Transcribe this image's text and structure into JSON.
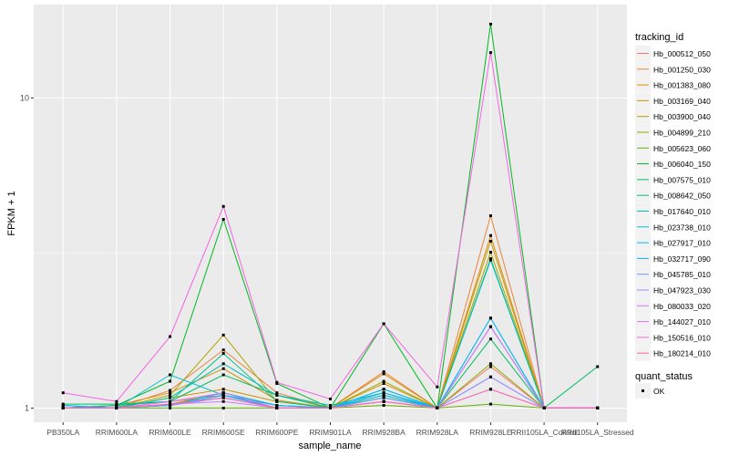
{
  "chart_data": {
    "type": "line",
    "xlabel": "sample_name",
    "ylabel": "FPKM + 1",
    "yscale": "log10",
    "ylim": [
      0.9,
      20
    ],
    "yticks": [
      1,
      10
    ],
    "ytick_labels": [
      "1",
      "10"
    ],
    "grid": true,
    "legend_position": "right",
    "categories": [
      "PB350LA",
      "RRIM600LA",
      "RRIM600LE",
      "RRIM600SE",
      "RRIM600PE",
      "RRIM901LA",
      "RRIM928BA",
      "RRIM928LA",
      "RRIM928LE",
      "RRII105LA_Control",
      "RRII105LA_Stressed"
    ],
    "color_legend_title": "tracking_id",
    "shape_legend_title": "quant_status",
    "shape_legend_items": [
      "OK"
    ],
    "series": [
      {
        "name": "Hb_000512_050",
        "color": "#F8766D",
        "values": [
          1.0,
          1.0,
          1.05,
          1.1,
          1.0,
          1.0,
          1.05,
          1.0,
          1.36,
          1.0,
          1.0
        ]
      },
      {
        "name": "Hb_001250_030",
        "color": "#EC8239",
        "values": [
          1.0,
          1.0,
          1.14,
          1.54,
          1.12,
          1.0,
          1.31,
          1.0,
          4.17,
          1.0,
          1.0
        ]
      },
      {
        "name": "Hb_001383_080",
        "color": "#DB8E00",
        "values": [
          1.0,
          1.02,
          1.12,
          1.34,
          1.06,
          1.0,
          1.29,
          1.0,
          3.6,
          1.0,
          1.0
        ]
      },
      {
        "name": "Hb_003169_040",
        "color": "#C79800",
        "values": [
          1.0,
          1.0,
          1.08,
          1.15,
          1.05,
          1.0,
          1.2,
          1.0,
          3.45,
          1.0,
          1.0
        ]
      },
      {
        "name": "Hb_003900_040",
        "color": "#AEA200",
        "values": [
          1.0,
          1.0,
          1.1,
          1.72,
          1.05,
          1.0,
          1.22,
          1.0,
          3.18,
          1.0,
          1.0
        ]
      },
      {
        "name": "Hb_004899_210",
        "color": "#8FAA00",
        "values": [
          1.0,
          1.0,
          1.03,
          1.12,
          1.02,
          1.0,
          1.1,
          1.0,
          1.39,
          1.0,
          1.0
        ]
      },
      {
        "name": "Hb_005623_060",
        "color": "#64B200",
        "values": [
          1.0,
          1.0,
          1.0,
          1.0,
          1.0,
          1.0,
          1.02,
          1.0,
          1.03,
          1.0,
          1.0
        ]
      },
      {
        "name": "Hb_006040_150",
        "color": "#00B81F",
        "values": [
          1.0,
          1.02,
          1.22,
          4.06,
          1.2,
          1.0,
          1.87,
          1.0,
          17.3,
          1.0,
          1.0
        ]
      },
      {
        "name": "Hb_007575_010",
        "color": "#00BD5C",
        "values": [
          1.03,
          1.03,
          1.05,
          1.28,
          1.1,
          1.0,
          1.08,
          1.0,
          1.67,
          1.0,
          1.36
        ]
      },
      {
        "name": "Hb_008642_050",
        "color": "#00C08B",
        "values": [
          1.0,
          1.02,
          1.05,
          1.5,
          1.05,
          1.0,
          1.15,
          1.0,
          3.03,
          1.0,
          1.0
        ]
      },
      {
        "name": "Hb_017640_010",
        "color": "#00C1B2",
        "values": [
          1.02,
          1.0,
          1.08,
          1.39,
          1.1,
          1.02,
          1.12,
          1.0,
          3.0,
          1.0,
          1.0
        ]
      },
      {
        "name": "Hb_023738_010",
        "color": "#00BFD4",
        "values": [
          1.0,
          1.0,
          1.28,
          1.1,
          1.02,
          1.0,
          1.1,
          1.0,
          1.95,
          1.0,
          1.0
        ]
      },
      {
        "name": "Hb_027917_010",
        "color": "#00B9F2",
        "values": [
          1.02,
          1.0,
          1.02,
          1.12,
          1.02,
          1.0,
          1.15,
          1.0,
          1.95,
          1.0,
          1.0
        ]
      },
      {
        "name": "Hb_032717_090",
        "color": "#00ADFA",
        "values": [
          1.0,
          1.0,
          1.02,
          1.1,
          1.0,
          1.0,
          1.12,
          1.0,
          1.83,
          1.0,
          1.0
        ]
      },
      {
        "name": "Hb_045785_010",
        "color": "#619CFF",
        "values": [
          1.0,
          1.0,
          1.02,
          1.08,
          1.0,
          1.0,
          1.08,
          1.0,
          1.26,
          1.0,
          1.0
        ]
      },
      {
        "name": "Hb_047923_030",
        "color": "#9C8DFF",
        "values": [
          1.0,
          1.0,
          1.03,
          1.08,
          1.0,
          1.0,
          1.05,
          1.0,
          1.26,
          1.0,
          1.0
        ]
      },
      {
        "name": "Hb_080033_020",
        "color": "#C77CFF",
        "values": [
          1.0,
          1.0,
          1.03,
          1.05,
          1.0,
          1.0,
          1.05,
          1.0,
          1.15,
          1.0,
          1.0
        ]
      },
      {
        "name": "Hb_144027_010",
        "color": "#E36EF6",
        "values": [
          1.0,
          1.0,
          1.05,
          1.12,
          1.0,
          1.0,
          1.05,
          1.0,
          1.83,
          1.0,
          1.0
        ]
      },
      {
        "name": "Hb_150516_010",
        "color": "#F564E3",
        "values": [
          1.12,
          1.05,
          1.7,
          4.47,
          1.21,
          1.07,
          1.87,
          1.17,
          14.0,
          1.0,
          1.0
        ]
      },
      {
        "name": "Hb_180214_010",
        "color": "#FF66A8",
        "values": [
          1.0,
          1.0,
          1.03,
          1.08,
          1.0,
          1.0,
          1.05,
          1.0,
          1.15,
          1.0,
          1.0
        ]
      }
    ]
  }
}
